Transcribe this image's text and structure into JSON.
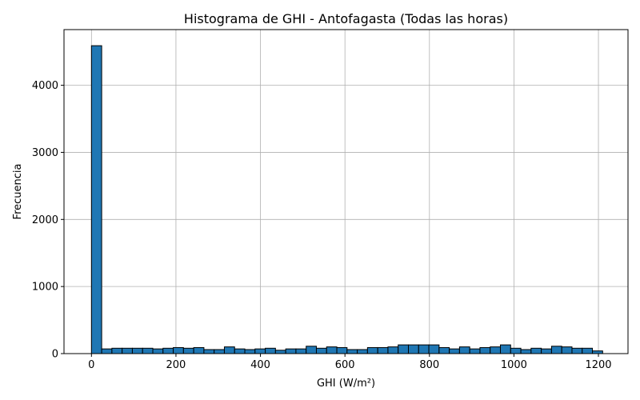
{
  "chart_data": {
    "type": "bar",
    "title": "Histograma de GHI - Antofagasta (Todas las horas)",
    "xlabel": "GHI (W/m²)",
    "ylabel": "Frecuencia",
    "xlim": [
      -65,
      1270
    ],
    "ylim": [
      0,
      4830
    ],
    "x_ticks": [
      0,
      200,
      400,
      600,
      800,
      1000,
      1200
    ],
    "y_ticks": [
      0,
      1000,
      2000,
      3000,
      4000
    ],
    "grid": true,
    "bar_color": "#1f77b4",
    "edge_color": "#000000",
    "bin_start": 0,
    "bin_width": 24.2,
    "values": [
      4590,
      70,
      80,
      80,
      80,
      80,
      70,
      80,
      90,
      80,
      90,
      60,
      60,
      100,
      70,
      60,
      70,
      80,
      50,
      70,
      70,
      110,
      80,
      100,
      90,
      60,
      60,
      90,
      90,
      100,
      130,
      130,
      130,
      130,
      90,
      70,
      100,
      70,
      90,
      100,
      130,
      80,
      60,
      80,
      70,
      110,
      100,
      80,
      80,
      40
    ]
  }
}
